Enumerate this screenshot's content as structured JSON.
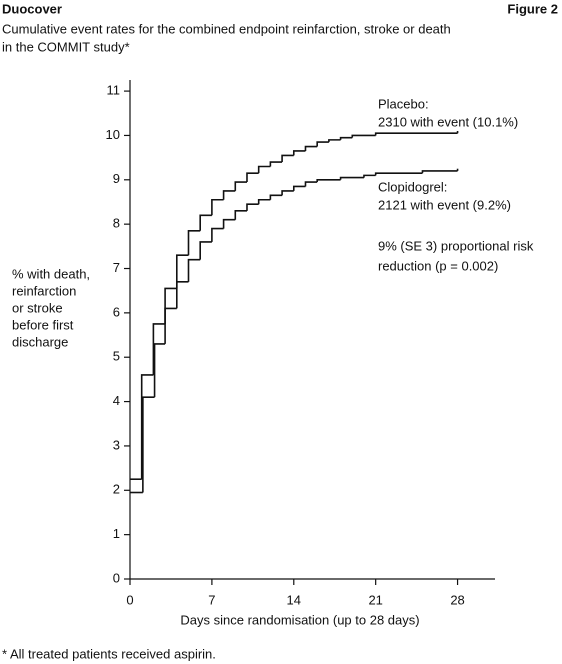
{
  "chart_data": {
    "type": "step-line",
    "header": "Duocover",
    "figure_label": "Figure 2",
    "title": [
      "Cumulative event rates for the combined endpoint reinfarction, stroke or death",
      "in the COMMIT study*"
    ],
    "ylabel": [
      "% with death,",
      "reinfarction",
      "or stroke",
      "before first",
      "discharge"
    ],
    "xlabel": "Days since randomisation (up to 28 days)",
    "footnote": "* All treated patients received aspirin.",
    "annotations": [
      "Placebo:",
      "2310 with event (10.1%)",
      "Clopidogrel:",
      "2121 with event (9.2%)",
      "9% (SE 3) proportional risk",
      "reduction (p = 0.002)"
    ],
    "xlim": [
      0,
      31.2
    ],
    "xticks": [
      0,
      7,
      14,
      21,
      28
    ],
    "ylim": [
      0,
      11.25
    ],
    "yticks": [
      0,
      1,
      2,
      3,
      4,
      5,
      6,
      7,
      8,
      9,
      10,
      11
    ],
    "series": [
      {
        "name": "Placebo",
        "color": "#111111",
        "x": [
          0,
          1,
          2,
          3,
          4,
          5,
          6,
          7,
          8,
          9,
          10,
          11,
          12,
          13,
          14,
          15,
          16,
          17,
          18,
          19,
          21,
          28
        ],
        "values": [
          2.25,
          4.6,
          5.75,
          6.55,
          7.3,
          7.85,
          8.2,
          8.55,
          8.75,
          8.95,
          9.15,
          9.3,
          9.4,
          9.55,
          9.65,
          9.75,
          9.85,
          9.9,
          9.95,
          10.0,
          10.05,
          10.1
        ]
      },
      {
        "name": "Clopidogrel",
        "color": "#111111",
        "x": [
          0,
          1.1,
          2.1,
          3,
          4,
          5,
          6,
          7,
          8,
          9,
          10,
          11,
          12,
          13,
          14,
          15,
          16,
          18,
          20,
          21,
          25,
          28
        ],
        "values": [
          1.95,
          4.1,
          5.3,
          6.1,
          6.7,
          7.2,
          7.6,
          7.9,
          8.1,
          8.3,
          8.45,
          8.55,
          8.65,
          8.75,
          8.85,
          8.95,
          9.0,
          9.05,
          9.1,
          9.15,
          9.2,
          9.25
        ]
      }
    ]
  }
}
